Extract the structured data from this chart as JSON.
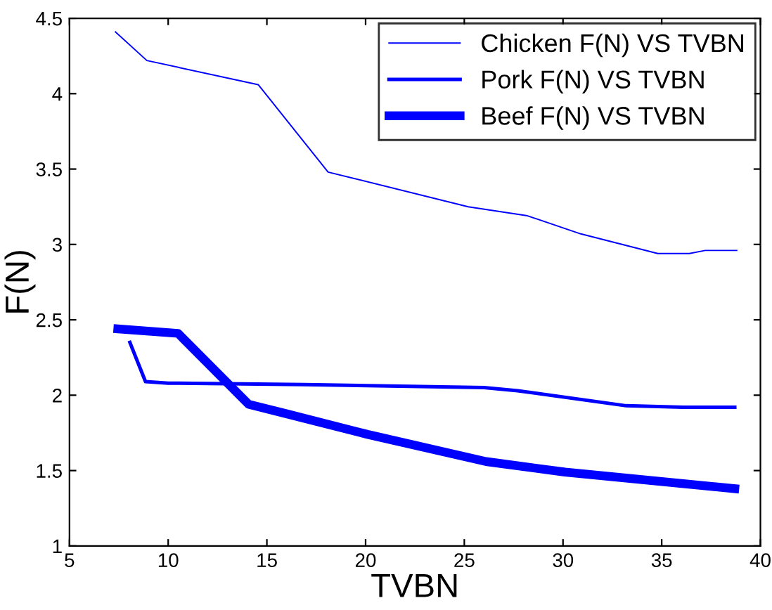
{
  "chart_data": {
    "type": "line",
    "xlabel": "TVBN",
    "ylabel": "F(N)",
    "xlim": [
      5,
      40
    ],
    "xticks": [
      5,
      10,
      15,
      20,
      25,
      30,
      35,
      40
    ],
    "ylim": [
      1,
      4.5
    ],
    "yticks": [
      1,
      1.5,
      2,
      2.5,
      3,
      3.5,
      4,
      4.5
    ],
    "grid": false,
    "legend": "top right",
    "marker": "none",
    "line_style": "solid",
    "series": [
      {
        "name": "Chicken F(N) VS TVBN",
        "color": "#0000ff",
        "x": [
          7.33,
          8.92,
          14.56,
          18.1,
          25.2,
          28.2,
          30.9,
          34.8,
          36.4,
          37.2,
          38.8
        ],
        "values": [
          4.41,
          4.22,
          4.06,
          3.48,
          3.25,
          3.19,
          3.07,
          2.94,
          2.94,
          2.96,
          2.96
        ]
      },
      {
        "name": "Pork F(N) VS TVBN",
        "color": "#0000ff",
        "x": [
          8.06,
          8.85,
          10.0,
          16.9,
          26.0,
          27.7,
          33.2,
          36.1,
          38.7
        ],
        "values": [
          2.35,
          2.09,
          2.08,
          2.07,
          2.05,
          2.03,
          1.93,
          1.92,
          1.92
        ]
      },
      {
        "name": "Beef F(N) VS TVBN",
        "color": "#0000ff",
        "x": [
          7.45,
          10.5,
          14.07,
          15.9,
          20.1,
          26.1,
          30.1,
          38.7
        ],
        "values": [
          2.44,
          2.41,
          1.94,
          1.88,
          1.74,
          1.56,
          1.49,
          1.38
        ]
      }
    ]
  }
}
